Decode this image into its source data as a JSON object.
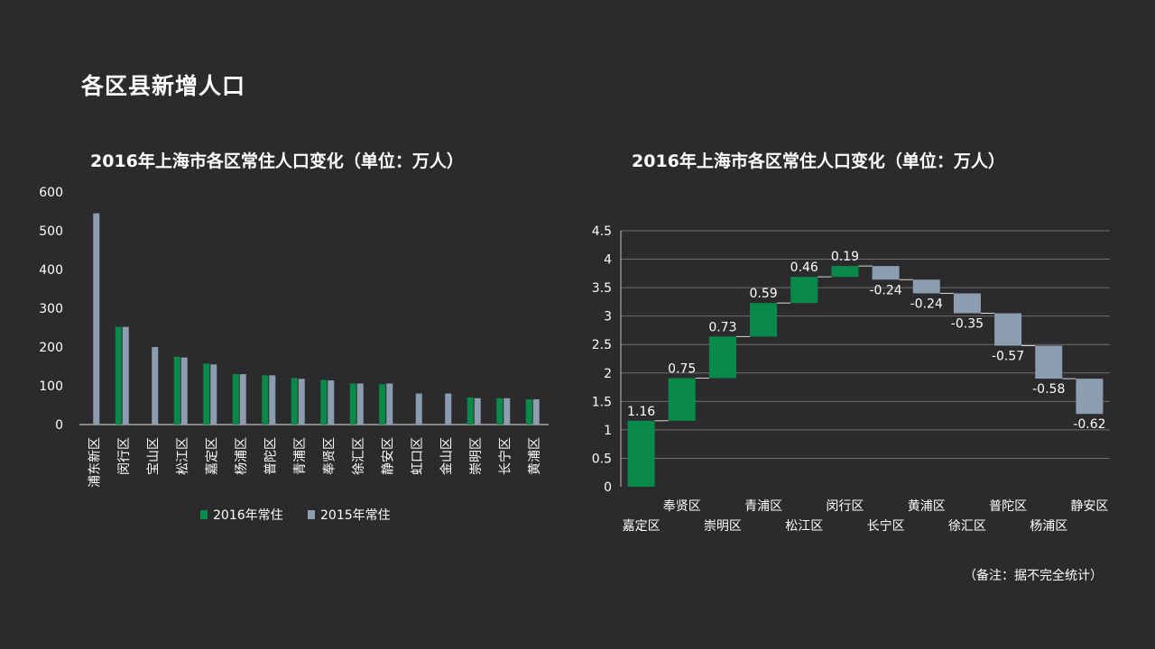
{
  "page": {
    "title": "各区县新增人口",
    "note": "（备注：据不完全统计）"
  },
  "colors": {
    "green": "#0a8a4a",
    "gray": "#8c9db0"
  },
  "chart_data": [
    {
      "type": "bar",
      "title": "2016年上海市各区常住人口变化（单位：万人）",
      "categories": [
        "浦东新区",
        "闵行区",
        "宝山区",
        "松江区",
        "嘉定区",
        "杨浦区",
        "普陀区",
        "青浦区",
        "奉贤区",
        "徐汇区",
        "静安区",
        "虹口区",
        "金山区",
        "崇明区",
        "长宁区",
        "黄浦区"
      ],
      "series": [
        {
          "name": "2016年常住",
          "color": "#0a8a4a",
          "values": [
            null,
            252,
            null,
            175,
            157,
            130,
            127,
            120,
            115,
            106,
            104,
            null,
            null,
            70,
            68,
            65
          ]
        },
        {
          "name": "2015年常住",
          "color": "#8c9db0",
          "values": [
            545,
            252,
            200,
            173,
            155,
            130,
            127,
            118,
            114,
            106,
            106,
            80,
            80,
            68,
            68,
            65
          ]
        }
      ],
      "yticks": [
        "0",
        "100",
        "200",
        "300",
        "400",
        "500",
        "600"
      ],
      "ylim": [
        0,
        600
      ],
      "legend": "bottom"
    },
    {
      "type": "waterfall",
      "title": "2016年上海市各区常住人口变化（单位：万人）",
      "categories": [
        "嘉定区",
        "奉贤区",
        "崇明区",
        "青浦区",
        "松江区",
        "闵行区",
        "长宁区",
        "黄浦区",
        "徐汇区",
        "普陀区",
        "杨浦区",
        "静安区"
      ],
      "values": [
        1.16,
        0.75,
        0.73,
        0.59,
        0.46,
        0.19,
        -0.24,
        -0.24,
        -0.35,
        -0.57,
        -0.58,
        -0.62
      ],
      "labels": [
        "1.16",
        "0.75",
        "0.73",
        "0.59",
        "0.46",
        "0.19",
        "-0.24",
        "-0.24",
        "-0.35",
        "-0.57",
        "-0.58",
        "-0.62"
      ],
      "yticks": [
        "0",
        "0.5",
        "1",
        "1.5",
        "2",
        "2.5",
        "3",
        "3.5",
        "4",
        "4.5"
      ],
      "ylim": [
        0,
        4.5
      ],
      "grid": true
    }
  ]
}
